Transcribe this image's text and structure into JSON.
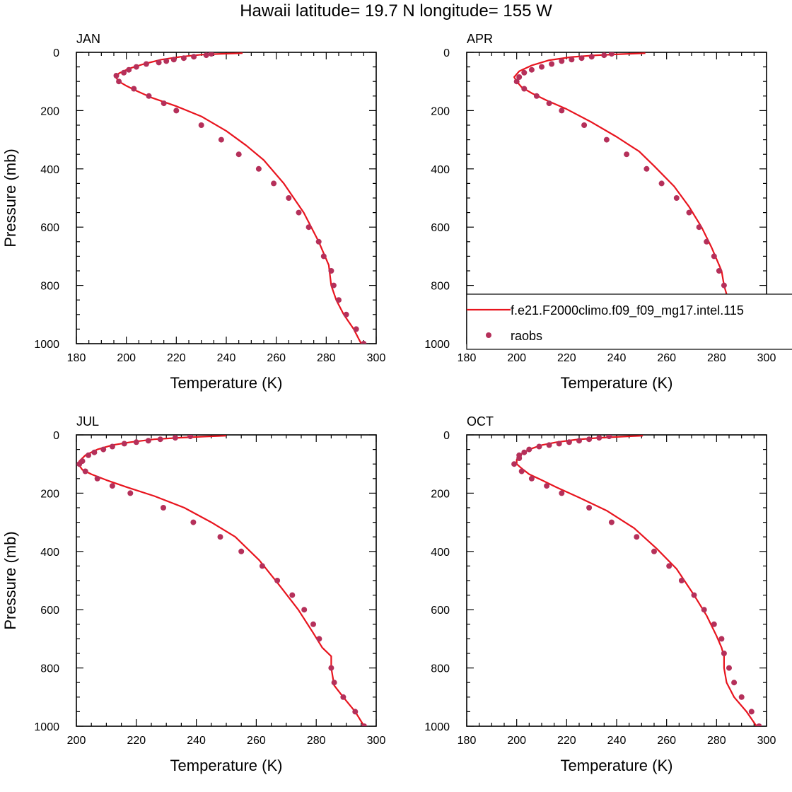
{
  "figure": {
    "title": "Hawaii  latitude= 19.7 N longitude= 155 W"
  },
  "legend": {
    "panel": "APR",
    "entries": [
      {
        "label": "f.e21.F2000climo.f09_f09_mg17.intel.115",
        "type": "line",
        "color": "#e8141e"
      },
      {
        "label": "raobs",
        "type": "marker",
        "color": "#b5305a"
      }
    ]
  },
  "chart_data": [
    {
      "type": "line",
      "title": "JAN",
      "xlabel": "Temperature (K)",
      "ylabel": "Pressure (mb)",
      "xlim": [
        180,
        300
      ],
      "ylim": [
        0,
        1000
      ],
      "y_reversed": true,
      "xticks": [
        180,
        200,
        220,
        240,
        260,
        280,
        300
      ],
      "yticks": [
        0,
        200,
        400,
        600,
        800,
        1000
      ],
      "series": [
        {
          "type": "line",
          "color": "#e8141e",
          "points": [
            [
              246.5,
              3
            ],
            [
              238,
              5
            ],
            [
              230,
              8
            ],
            [
              222,
              15
            ],
            [
              214,
              25
            ],
            [
              207,
              40
            ],
            [
              201,
              56
            ],
            [
              197,
              72
            ],
            [
              196,
              88
            ],
            [
              197,
              100
            ],
            [
              200,
              115
            ],
            [
              204,
              132
            ],
            [
              210,
              155
            ],
            [
              220,
              185
            ],
            [
              230,
              220
            ],
            [
              240,
              270
            ],
            [
              248,
              320
            ],
            [
              255,
              370
            ],
            [
              263,
              450
            ],
            [
              271,
              550
            ],
            [
              277,
              650
            ],
            [
              281,
              730
            ],
            [
              282,
              800
            ],
            [
              284,
              850
            ],
            [
              287,
              900
            ],
            [
              291,
              950
            ],
            [
              294,
              1000
            ]
          ]
        },
        {
          "type": "scatter",
          "color": "#b5305a",
          "points": [
            [
              234,
              5
            ],
            [
              232,
              10
            ],
            [
              227,
              15
            ],
            [
              223,
              20
            ],
            [
              219,
              25
            ],
            [
              216,
              30
            ],
            [
              213,
              35
            ],
            [
              208,
              40
            ],
            [
              204,
              50
            ],
            [
              201,
              60
            ],
            [
              199,
              70
            ],
            [
              196,
              80
            ],
            [
              197,
              100
            ],
            [
              203,
              125
            ],
            [
              209,
              150
            ],
            [
              215,
              175
            ],
            [
              220,
              200
            ],
            [
              230,
              250
            ],
            [
              238,
              300
            ],
            [
              245,
              350
            ],
            [
              253,
              400
            ],
            [
              259,
              450
            ],
            [
              265,
              500
            ],
            [
              269,
              550
            ],
            [
              273,
              600
            ],
            [
              277,
              650
            ],
            [
              279,
              700
            ],
            [
              282,
              750
            ],
            [
              283,
              800
            ],
            [
              285,
              850
            ],
            [
              288,
              900
            ],
            [
              292,
              950
            ],
            [
              295,
              1000
            ]
          ]
        }
      ]
    },
    {
      "type": "line",
      "title": "APR",
      "xlabel": "Temperature (K)",
      "ylabel": "",
      "xlim": [
        180,
        300
      ],
      "ylim": [
        0,
        1000
      ],
      "y_reversed": true,
      "xticks": [
        180,
        200,
        220,
        240,
        260,
        280,
        300
      ],
      "yticks": [
        0,
        200,
        400,
        600,
        800,
        1000
      ],
      "series": [
        {
          "type": "line",
          "color": "#e8141e",
          "points": [
            [
              251.5,
              3
            ],
            [
              242,
              6
            ],
            [
              232,
              10
            ],
            [
              222,
              16
            ],
            [
              213,
              27
            ],
            [
              206,
              45
            ],
            [
              201,
              65
            ],
            [
              199,
              85
            ],
            [
              200,
              100
            ],
            [
              202,
              120
            ],
            [
              206,
              140
            ],
            [
              212,
              165
            ],
            [
              220,
              195
            ],
            [
              230,
              240
            ],
            [
              240,
              290
            ],
            [
              249,
              340
            ],
            [
              255,
              390
            ],
            [
              263,
              460
            ],
            [
              269,
              530
            ],
            [
              274,
              600
            ],
            [
              278,
              670
            ],
            [
              282,
              750
            ],
            [
              283,
              800
            ],
            [
              285,
              860
            ],
            [
              288,
              910
            ],
            [
              291,
              950
            ],
            [
              294,
              1000
            ]
          ]
        },
        {
          "type": "scatter",
          "color": "#b5305a",
          "points": [
            [
              238,
              5
            ],
            [
              235,
              10
            ],
            [
              230,
              15
            ],
            [
              226,
              20
            ],
            [
              222,
              25
            ],
            [
              218,
              30
            ],
            [
              214,
              40
            ],
            [
              210,
              50
            ],
            [
              206,
              60
            ],
            [
              203,
              70
            ],
            [
              201,
              85
            ],
            [
              200,
              100
            ],
            [
              203,
              125
            ],
            [
              208,
              150
            ],
            [
              213,
              175
            ],
            [
              218,
              200
            ],
            [
              227,
              250
            ],
            [
              236,
              300
            ],
            [
              244,
              350
            ],
            [
              252,
              400
            ],
            [
              258,
              450
            ],
            [
              264,
              500
            ],
            [
              269,
              550
            ],
            [
              273,
              600
            ],
            [
              276,
              650
            ],
            [
              279,
              700
            ],
            [
              281,
              750
            ],
            [
              283,
              800
            ],
            [
              285,
              850
            ],
            [
              287,
              900
            ],
            [
              292,
              950
            ],
            [
              295,
              1000
            ]
          ]
        }
      ]
    },
    {
      "type": "line",
      "title": "JUL",
      "xlabel": "Temperature (K)",
      "ylabel": "Pressure (mb)",
      "xlim": [
        200,
        300
      ],
      "ylim": [
        0,
        1000
      ],
      "y_reversed": true,
      "xticks": [
        200,
        220,
        240,
        260,
        280,
        300
      ],
      "yticks": [
        0,
        200,
        400,
        600,
        800,
        1000
      ],
      "series": [
        {
          "type": "line",
          "color": "#e8141e",
          "points": [
            [
              250,
              3
            ],
            [
              242,
              6
            ],
            [
              234,
              10
            ],
            [
              226,
              15
            ],
            [
              218,
              25
            ],
            [
              212,
              35
            ],
            [
              207,
              50
            ],
            [
              203,
              70
            ],
            [
              201,
              90
            ],
            [
              201,
              105
            ],
            [
              202,
              120
            ],
            [
              205,
              135
            ],
            [
              210,
              155
            ],
            [
              217,
              180
            ],
            [
              226,
              210
            ],
            [
              236,
              250
            ],
            [
              245,
              300
            ],
            [
              253,
              350
            ],
            [
              261,
              430
            ],
            [
              268,
              520
            ],
            [
              274,
              600
            ],
            [
              279,
              680
            ],
            [
              282,
              730
            ],
            [
              285,
              760
            ],
            [
              285,
              800
            ],
            [
              286,
              860
            ],
            [
              289,
              900
            ],
            [
              293,
              950
            ],
            [
              296,
              1000
            ]
          ]
        },
        {
          "type": "scatter",
          "color": "#b5305a",
          "points": [
            [
              238,
              5
            ],
            [
              233,
              10
            ],
            [
              228,
              15
            ],
            [
              224,
              20
            ],
            [
              220,
              25
            ],
            [
              216,
              30
            ],
            [
              212,
              40
            ],
            [
              209,
              50
            ],
            [
              206,
              60
            ],
            [
              204,
              70
            ],
            [
              202,
              90
            ],
            [
              201,
              100
            ],
            [
              203,
              125
            ],
            [
              207,
              150
            ],
            [
              212,
              175
            ],
            [
              218,
              200
            ],
            [
              229,
              250
            ],
            [
              239,
              300
            ],
            [
              248,
              350
            ],
            [
              255,
              400
            ],
            [
              262,
              450
            ],
            [
              267,
              500
            ],
            [
              272,
              550
            ],
            [
              276,
              600
            ],
            [
              279,
              650
            ],
            [
              281,
              700
            ],
            [
              285,
              800
            ],
            [
              286,
              850
            ],
            [
              289,
              900
            ],
            [
              293,
              950
            ],
            [
              296,
              1000
            ]
          ]
        }
      ]
    },
    {
      "type": "line",
      "title": "OCT",
      "xlabel": "Temperature (K)",
      "ylabel": "",
      "xlim": [
        180,
        300
      ],
      "ylim": [
        0,
        1000
      ],
      "y_reversed": true,
      "xticks": [
        180,
        200,
        220,
        240,
        260,
        280,
        300
      ],
      "yticks": [
        0,
        200,
        400,
        600,
        800,
        1000
      ],
      "series": [
        {
          "type": "line",
          "color": "#e8141e",
          "points": [
            [
              250.5,
              3
            ],
            [
              242,
              6
            ],
            [
              233,
              10
            ],
            [
              224,
              16
            ],
            [
              216,
              25
            ],
            [
              210,
              35
            ],
            [
              205,
              50
            ],
            [
              202,
              65
            ],
            [
              200,
              85
            ],
            [
              200,
              100
            ],
            [
              202,
              115
            ],
            [
              205,
              135
            ],
            [
              210,
              155
            ],
            [
              216,
              180
            ],
            [
              225,
              215
            ],
            [
              236,
              260
            ],
            [
              247,
              320
            ],
            [
              256,
              390
            ],
            [
              264,
              460
            ],
            [
              271,
              550
            ],
            [
              276,
              620
            ],
            [
              280,
              690
            ],
            [
              282,
              730
            ],
            [
              283,
              760
            ],
            [
              283,
              800
            ],
            [
              284,
              850
            ],
            [
              287,
              900
            ],
            [
              292,
              950
            ],
            [
              296,
              1000
            ]
          ]
        },
        {
          "type": "scatter",
          "color": "#b5305a",
          "points": [
            [
              237,
              5
            ],
            [
              233,
              10
            ],
            [
              229,
              15
            ],
            [
              225,
              20
            ],
            [
              221,
              25
            ],
            [
              217,
              30
            ],
            [
              213,
              35
            ],
            [
              209,
              40
            ],
            [
              205,
              50
            ],
            [
              203,
              60
            ],
            [
              201,
              70
            ],
            [
              201,
              80
            ],
            [
              199,
              100
            ],
            [
              202,
              125
            ],
            [
              206,
              150
            ],
            [
              212,
              175
            ],
            [
              218,
              200
            ],
            [
              229,
              250
            ],
            [
              238,
              300
            ],
            [
              248,
              350
            ],
            [
              255,
              400
            ],
            [
              261,
              450
            ],
            [
              266,
              500
            ],
            [
              271,
              550
            ],
            [
              275,
              600
            ],
            [
              279,
              650
            ],
            [
              282,
              700
            ],
            [
              283,
              750
            ],
            [
              285,
              800
            ],
            [
              287,
              850
            ],
            [
              290,
              900
            ],
            [
              294,
              950
            ],
            [
              297,
              1000
            ]
          ]
        }
      ]
    }
  ]
}
